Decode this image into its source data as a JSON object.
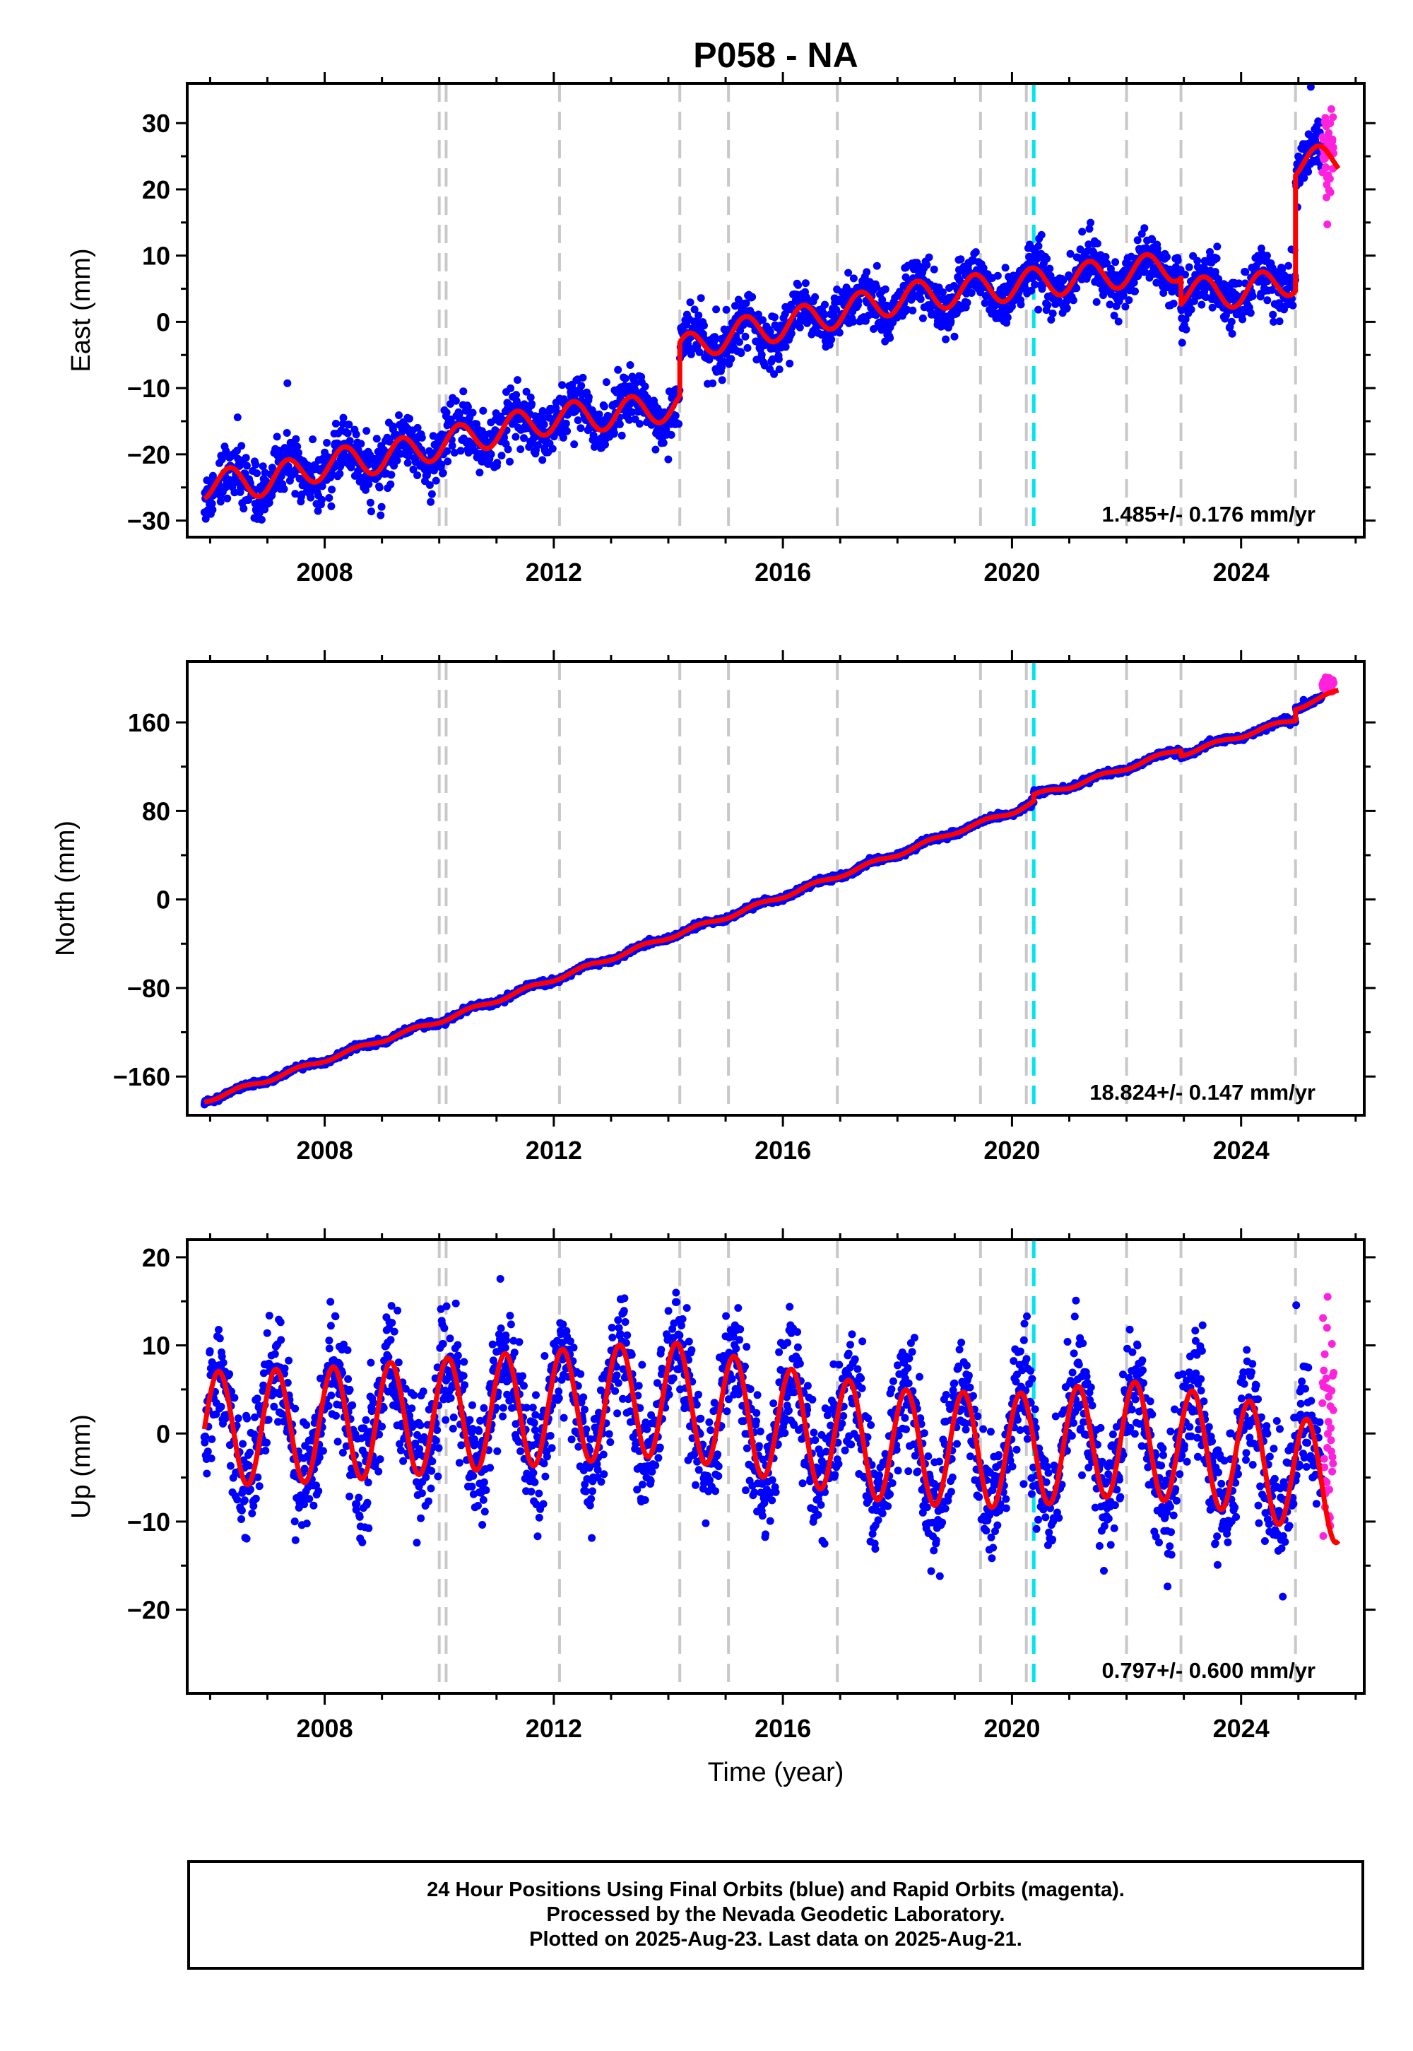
{
  "title": "P058 - NA",
  "xlabel": "Time (year)",
  "colors": {
    "final_orbits": "#0000ff",
    "rapid_orbits": "#ff22dd",
    "model": "#ff0000",
    "equipment_change": "#c8c8c8",
    "earthquake": "#00e5ee"
  },
  "event_lines": {
    "grey": [
      2010.0,
      2010.12,
      2012.1,
      2014.2,
      2015.05,
      2016.95,
      2019.45,
      2020.25,
      2022.0,
      2022.95,
      2024.95
    ],
    "cyan": [
      2020.38
    ]
  },
  "chart_data": [
    {
      "type": "scatter",
      "name": "east",
      "ylabel": "East (mm)",
      "xlim": [
        2005.6,
        2026.15
      ],
      "ylim": [
        -32.5,
        36
      ],
      "xticks": [
        2008,
        2012,
        2016,
        2020,
        2024
      ],
      "yticks": [
        -30,
        -20,
        -10,
        0,
        10,
        20,
        30
      ],
      "rate_label": "1.485+/- 0.176 mm/yr",
      "noise": 2.0,
      "model": {
        "knots": [
          [
            2005.9,
            -24.5
          ],
          [
            2007.0,
            -24
          ],
          [
            2008.0,
            -21.5
          ],
          [
            2009.0,
            -20.5
          ],
          [
            2010.0,
            -18.5
          ],
          [
            2011.0,
            -16.5
          ],
          [
            2012.0,
            -14.5
          ],
          [
            2013.0,
            -14
          ],
          [
            2014.2,
            -12.5
          ],
          [
            2014.2,
            -4.5
          ],
          [
            2015.0,
            -2
          ],
          [
            2016.0,
            -0.5
          ],
          [
            2017.0,
            1.5
          ],
          [
            2018.0,
            3.5
          ],
          [
            2019.0,
            4.5
          ],
          [
            2020.0,
            5.5
          ],
          [
            2021.0,
            6.5
          ],
          [
            2022.0,
            7.5
          ],
          [
            2022.95,
            8.5
          ],
          [
            2022.95,
            4.5
          ],
          [
            2024.0,
            4.5
          ],
          [
            2024.95,
            6.5
          ],
          [
            2024.95,
            24
          ],
          [
            2025.7,
            24.5
          ]
        ],
        "seasonal_amp": 2.3,
        "seasonal_phase": 0.1
      },
      "rapid": {
        "start": 2025.42,
        "center": 25.5,
        "spread": 4.5
      }
    },
    {
      "type": "scatter",
      "name": "north",
      "ylabel": "North (mm)",
      "xlim": [
        2005.6,
        2026.15
      ],
      "ylim": [
        -195,
        215
      ],
      "xticks": [
        2008,
        2012,
        2016,
        2020,
        2024
      ],
      "yticks": [
        -160,
        -80,
        0,
        80,
        160
      ],
      "rate_label": "18.824+/- 0.147 mm/yr",
      "noise": 1.3,
      "model": {
        "knots": [
          [
            2005.9,
            -182
          ],
          [
            2007.0,
            -163
          ],
          [
            2008.0,
            -145
          ],
          [
            2009.0,
            -127
          ],
          [
            2010.0,
            -110
          ],
          [
            2011.0,
            -91
          ],
          [
            2012.0,
            -72
          ],
          [
            2013.0,
            -53
          ],
          [
            2014.0,
            -34
          ],
          [
            2015.0,
            -16
          ],
          [
            2016.0,
            3
          ],
          [
            2017.0,
            22
          ],
          [
            2018.0,
            41
          ],
          [
            2019.0,
            61
          ],
          [
            2020.0,
            79
          ],
          [
            2020.38,
            88
          ],
          [
            2020.38,
            94
          ],
          [
            2021.0,
            102
          ],
          [
            2022.0,
            119
          ],
          [
            2022.95,
            136
          ],
          [
            2022.95,
            131
          ],
          [
            2024.0,
            148
          ],
          [
            2024.95,
            163
          ],
          [
            2024.95,
            173
          ],
          [
            2025.7,
            188
          ]
        ],
        "seasonal_amp": 1.8,
        "seasonal_phase": 0.3
      },
      "rapid": {
        "start": 2025.42,
        "center": 193,
        "spread": 3.0
      }
    },
    {
      "type": "scatter",
      "name": "up",
      "ylabel": "Up (mm)",
      "xlim": [
        2005.6,
        2026.15
      ],
      "ylim": [
        -29.5,
        22
      ],
      "xticks": [
        2008,
        2012,
        2016,
        2020,
        2024
      ],
      "yticks": [
        -20,
        -10,
        0,
        10,
        20
      ],
      "rate_label": "0.797+/- 0.600 mm/yr",
      "noise": 3.4,
      "model": {
        "knots": [
          [
            2005.9,
            0.5
          ],
          [
            2008.0,
            1
          ],
          [
            2010.0,
            2
          ],
          [
            2012.0,
            3
          ],
          [
            2014.0,
            4
          ],
          [
            2016.0,
            1
          ],
          [
            2018.0,
            -1.5
          ],
          [
            2020.0,
            -2
          ],
          [
            2022.0,
            -0.5
          ],
          [
            2024.0,
            -2.5
          ],
          [
            2025.7,
            -6
          ]
        ],
        "seasonal_amp": 6.5,
        "seasonal_phase": 0.9
      },
      "rapid": {
        "start": 2025.42,
        "center": 0,
        "spread": 7.5
      }
    }
  ],
  "caption": {
    "line1": "24 Hour Positions Using Final Orbits (blue) and Rapid Orbits (magenta).",
    "line2": "Processed by the Nevada Geodetic Laboratory.",
    "line3": "Plotted on 2025-Aug-23. Last data on 2025-Aug-21."
  }
}
